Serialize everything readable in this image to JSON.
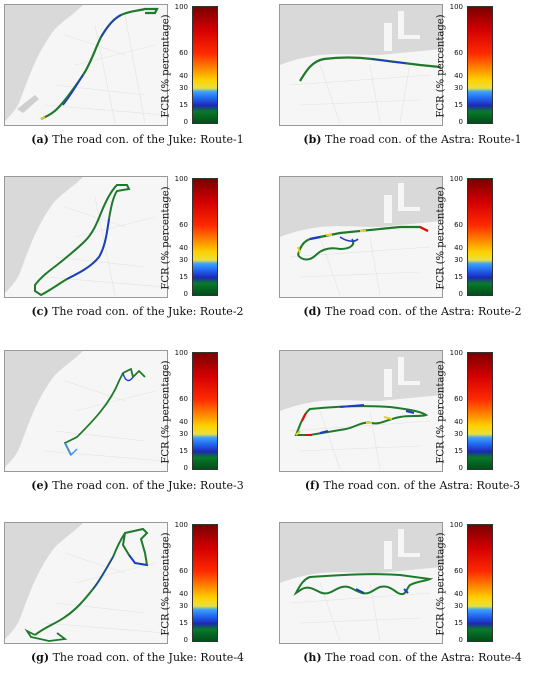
{
  "colorbar": {
    "axis_label": "FCR (% percentage)",
    "ticks": [
      "100",
      "60",
      "40",
      "30",
      "15",
      "0"
    ],
    "tick_values": [
      100,
      60,
      40,
      30,
      15,
      0
    ],
    "colors": {
      "c0": "#004d1a",
      "c10": "#0a7a2a",
      "c15": "#1e28b4",
      "c20": "#1e5ae6",
      "c27": "#3ca0ff",
      "c30": "#e8e040",
      "c37": "#ffd200",
      "c45": "#ff9600",
      "c60": "#ff2a00",
      "c80": "#d40000",
      "c100": "#7a0000"
    }
  },
  "panels": [
    {
      "letter": "(a)",
      "caption": "The road con. of the Juke: Route-1"
    },
    {
      "letter": "(b)",
      "caption": "The road con. of the Astra: Route-1"
    },
    {
      "letter": "(c)",
      "caption": "The road con. of the Juke: Route-2"
    },
    {
      "letter": "(d)",
      "caption": "The road con. of the Astra: Route-2"
    },
    {
      "letter": "(e)",
      "caption": "The road con. of the Juke: Route-3"
    },
    {
      "letter": "(f)",
      "caption": "The road con. of the Astra: Route-3"
    },
    {
      "letter": "(g)",
      "caption": "The road con. of the Juke: Route-4"
    },
    {
      "letter": "(h)",
      "caption": "The road con. of the Astra: Route-4"
    }
  ],
  "map_colors": {
    "sea": "#d9d9d9",
    "land": "#f6f6f6",
    "roads": "#dcdcdc"
  }
}
